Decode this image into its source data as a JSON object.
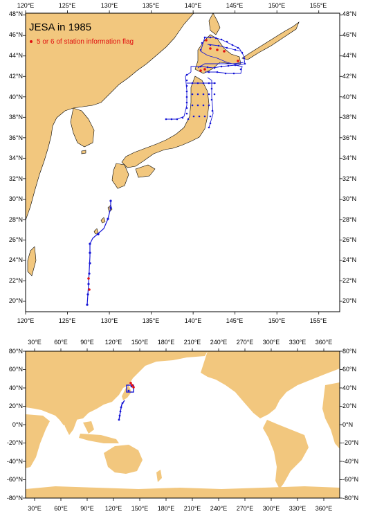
{
  "colors": {
    "land": "#f2c77e",
    "ocean": "#ffffff",
    "track": "#1515d6",
    "flagged": "#e01010",
    "frame": "#000000"
  },
  "regional_map": {
    "title": "JESA in 1985",
    "legend_label": "5 or 6 of station information flag",
    "lon_ticks": [
      "120°E",
      "125°E",
      "130°E",
      "135°E",
      "140°E",
      "145°E",
      "150°E",
      "155°E"
    ],
    "lat_ticks": [
      "20°N",
      "22°N",
      "24°N",
      "26°N",
      "28°N",
      "30°N",
      "32°N",
      "34°N",
      "36°N",
      "38°N",
      "40°N",
      "42°N",
      "44°N",
      "46°N",
      "48°N"
    ]
  },
  "global_map": {
    "lon_ticks": [
      "30°E",
      "60°E",
      "90°E",
      "120°E",
      "150°E",
      "180°E",
      "210°E",
      "240°E",
      "270°E",
      "300°E",
      "330°E",
      "360°E"
    ],
    "lat_ticks": [
      "-80°N",
      "-60°N",
      "-40°N",
      "-20°N",
      "0°N",
      "20°N",
      "40°N",
      "60°N",
      "80°N"
    ]
  }
}
